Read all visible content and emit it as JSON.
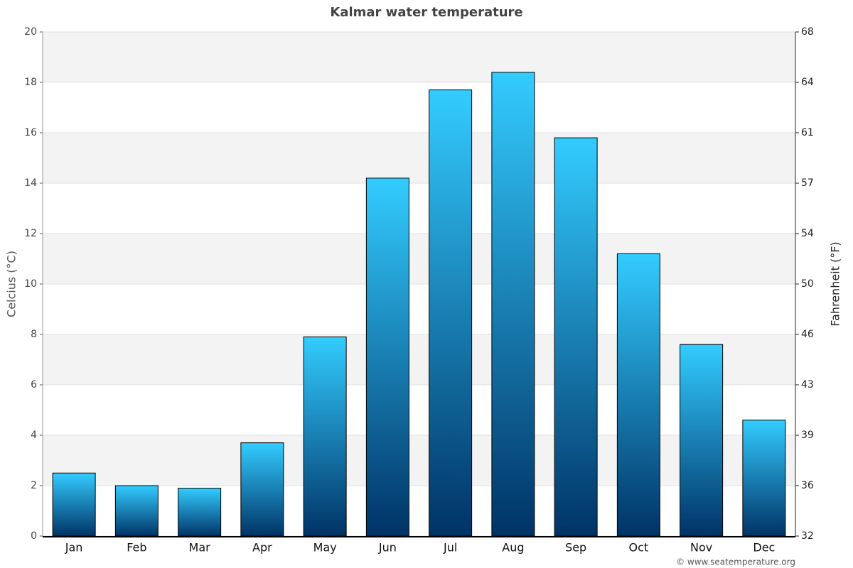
{
  "chart_data": {
    "type": "bar",
    "title": "Kalmar water temperature",
    "categories": [
      "Jan",
      "Feb",
      "Mar",
      "Apr",
      "May",
      "Jun",
      "Jul",
      "Aug",
      "Sep",
      "Oct",
      "Nov",
      "Dec"
    ],
    "values": [
      2.5,
      2.0,
      1.9,
      3.7,
      7.9,
      14.2,
      17.7,
      18.4,
      15.8,
      11.2,
      7.6,
      4.6
    ],
    "color": [
      "#33ccff",
      "#003366"
    ],
    "ylabel": "Celcius (°C)",
    "y2label": "Fahrenheit (°F)",
    "ylim": [
      0,
      20
    ],
    "yticks": [
      0,
      2,
      4,
      6,
      8,
      10,
      12,
      14,
      16,
      18,
      20
    ],
    "y2lim": [
      32,
      68
    ],
    "y2ticks": [
      32,
      {
        "value": 35.6,
        "label": "36"
      },
      {
        "value": 39.2,
        "label": "39"
      },
      {
        "value": 42.8,
        "label": "43"
      },
      {
        "value": 46.4,
        "label": "46"
      },
      50,
      {
        "value": 53.6,
        "label": "54"
      },
      {
        "value": 57.2,
        "label": "57"
      },
      {
        "value": 60.8,
        "label": "61"
      },
      {
        "value": 64.4,
        "label": "64"
      },
      68
    ],
    "grid": true,
    "credit": "© www.seatemperature.org"
  }
}
